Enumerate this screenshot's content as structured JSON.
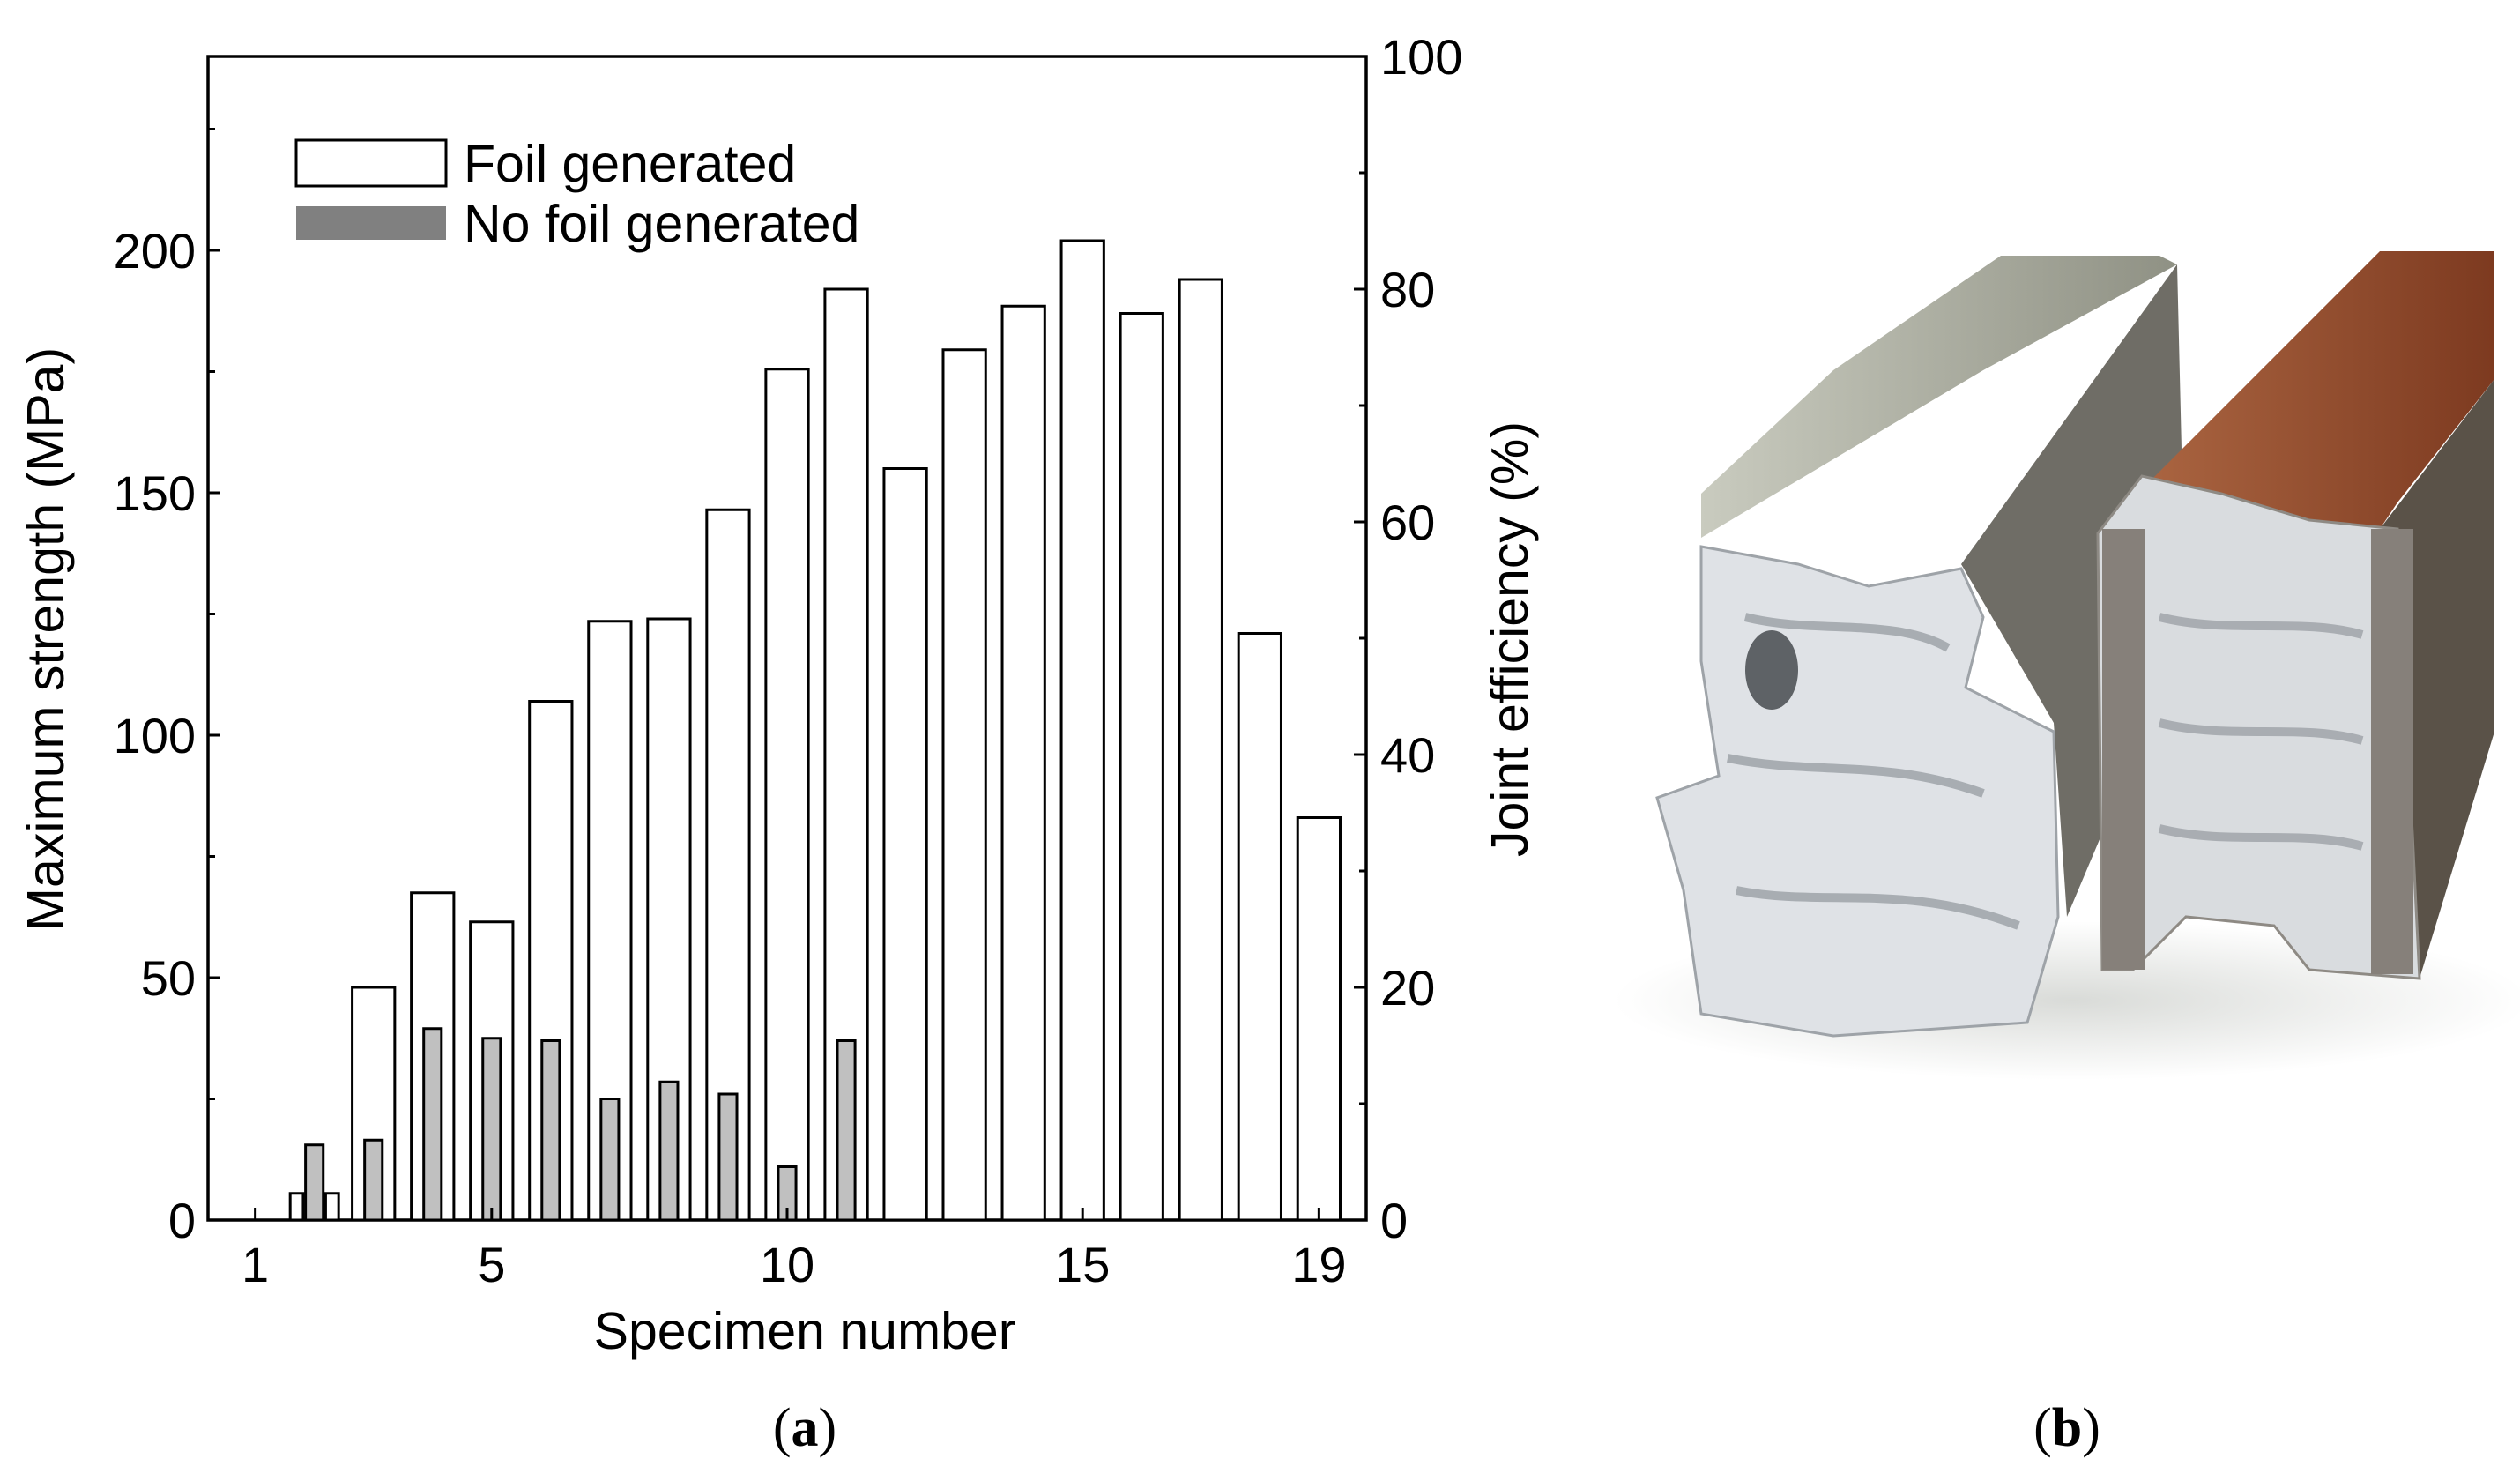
{
  "chart_data": {
    "type": "bar",
    "xlabel": "Specimen number",
    "ylabel": "Maximum strength (MPa)",
    "y2label": "Joint efficiency (%)",
    "ylim": [
      0,
      240
    ],
    "y2lim": [
      0,
      100
    ],
    "xlim": [
      0.2,
      19.8
    ],
    "yticks": [
      "0",
      "50",
      "100",
      "150",
      "200"
    ],
    "y2ticks": [
      "0",
      "20",
      "40",
      "60",
      "80",
      "100"
    ],
    "xticks": [
      "1",
      "5",
      "10",
      "15",
      "19"
    ],
    "grid": false,
    "legend_position": "top-left",
    "series": [
      {
        "name": "Foil generated",
        "fill": "#ffffff",
        "points": [
          {
            "x": 2,
            "y": 5.5,
            "pos": "left"
          },
          {
            "x": 3,
            "y": 48
          },
          {
            "x": 4,
            "y": 67.5
          },
          {
            "x": 5,
            "y": 61.5
          },
          {
            "x": 6,
            "y": 107
          },
          {
            "x": 7,
            "y": 123.5
          },
          {
            "x": 8,
            "y": 124
          },
          {
            "x": 9,
            "y": 146.5
          },
          {
            "x": 10,
            "y": 175.5
          },
          {
            "x": 11,
            "y": 192
          },
          {
            "x": 12,
            "y": 155
          },
          {
            "x": 13,
            "y": 179.5
          },
          {
            "x": 14,
            "y": 188.5
          },
          {
            "x": 15,
            "y": 202
          },
          {
            "x": 16,
            "y": 187
          },
          {
            "x": 17,
            "y": 194
          },
          {
            "x": 18,
            "y": 121
          },
          {
            "x": 19,
            "y": 83
          }
        ]
      },
      {
        "name": "No foil generated",
        "fill": "#c0c0c0",
        "points": [
          {
            "x": 2,
            "y": 15.5
          },
          {
            "x": 3,
            "y": 16.5
          },
          {
            "x": 4,
            "y": 39.5
          },
          {
            "x": 5,
            "y": 37.5
          },
          {
            "x": 6,
            "y": 37
          },
          {
            "x": 7,
            "y": 25
          },
          {
            "x": 8,
            "y": 28.5
          },
          {
            "x": 9,
            "y": 26
          },
          {
            "x": 10,
            "y": 11
          },
          {
            "x": 11,
            "y": 37
          }
        ]
      },
      {
        "name": "",
        "fill": "#ffffff",
        "points": [
          {
            "x": 2,
            "y": 5.5,
            "pos": "right"
          }
        ]
      }
    ]
  },
  "panel_labels": {
    "a": "a",
    "b": "b"
  },
  "photo": {
    "left_piece_color": "#9b9d8e",
    "right_piece_color": "#9a4a2a",
    "fracture_color": "#dfe2e6"
  }
}
